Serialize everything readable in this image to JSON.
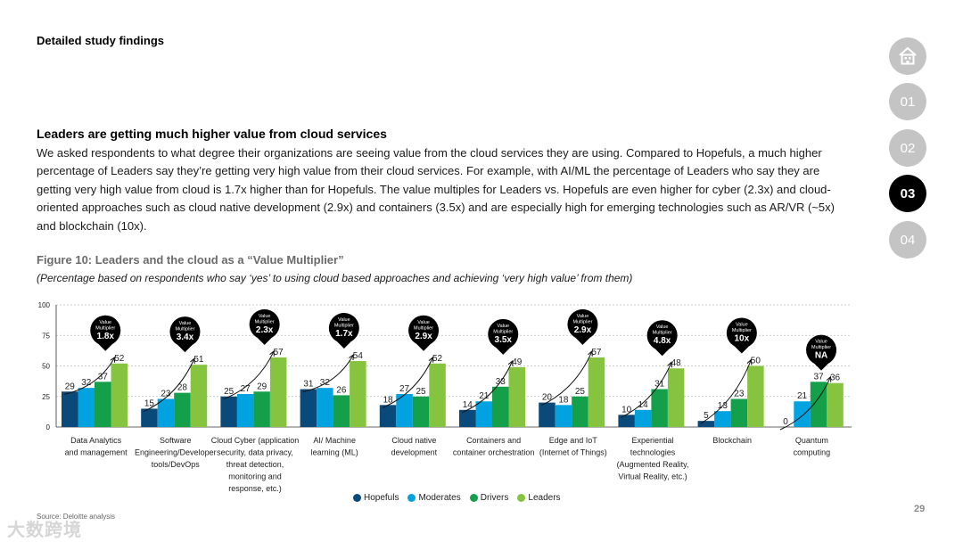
{
  "section_title": "Detailed study findings",
  "heading": "Leaders are getting much higher value from cloud services",
  "body": "We asked respondents to what degree their organizations are seeing value from the cloud services they are using. Compared to Hopefuls, a much higher percentage of Leaders say they’re getting very high value from their cloud services. For example, with AI/ML the percentage of Leaders who say they are getting very high value from cloud is 1.7x higher than for Hopefuls. The value multiples for Leaders vs. Hopefuls are even higher for cyber (2.3x) and cloud-oriented approaches such as cloud native development (2.9x) and containers (3.5x) and are especially high for emerging technologies such as AR/VR (~5x) and blockchain (10x).",
  "figure_title": "Figure 10: Leaders and the cloud as a “Value Multiplier”",
  "figure_subtitle": "(Percentage based on respondents who say ‘yes’ to using cloud based approaches and achieving ‘very high value’ from them)",
  "source": "Source: Deloitte analysis",
  "watermark": "大数跨境",
  "page_number": "29",
  "nav": {
    "home_label": "home",
    "items": [
      "01",
      "02",
      "03",
      "04"
    ],
    "active_index": 2
  },
  "colors": {
    "Hopefuls": "#0a4a7a",
    "Moderates": "#00a3e0",
    "Drivers": "#14a04a",
    "Leaders": "#86c440"
  },
  "chart_data": {
    "type": "bar",
    "title": "Figure 10: Leaders and the cloud as a “Value Multiplier”",
    "ylim": [
      0,
      100
    ],
    "yticks": [
      0,
      25,
      50,
      75,
      100
    ],
    "grid": true,
    "multiplier_label": "Value Multiplier",
    "categories": [
      [
        "Data Analytics",
        "and management"
      ],
      [
        "Software",
        "Engineering/Developer",
        "tools/DevOps"
      ],
      [
        "Cloud Cyber (application",
        "security, data privacy,",
        "threat detection,",
        "monitoring and",
        "response, etc.)"
      ],
      [
        "AI/ Machine",
        "learning (ML)"
      ],
      [
        "Cloud native",
        "development"
      ],
      [
        "Containers and",
        "container orchestration"
      ],
      [
        "Edge and IoT",
        "(Internet of Things)"
      ],
      [
        "Experiential",
        "technologies",
        "(Augmented Reality,",
        "Virtual Reality, etc.)"
      ],
      [
        "Blockchain"
      ],
      [
        "Quantum",
        "computing"
      ]
    ],
    "series": [
      {
        "name": "Hopefuls",
        "values": [
          29,
          15,
          25,
          31,
          18,
          14,
          20,
          10,
          5,
          0
        ]
      },
      {
        "name": "Moderates",
        "values": [
          32,
          23,
          27,
          32,
          27,
          21,
          18,
          14,
          13,
          21
        ]
      },
      {
        "name": "Drivers",
        "values": [
          37,
          28,
          29,
          26,
          25,
          33,
          25,
          31,
          23,
          37
        ]
      },
      {
        "name": "Leaders",
        "values": [
          52,
          51,
          57,
          54,
          52,
          49,
          57,
          48,
          50,
          36
        ]
      }
    ],
    "multipliers": [
      "1.8x",
      "3.4x",
      "2.3x",
      "1.7x",
      "2.9x",
      "3.5x",
      "2.9x",
      "4.8x",
      "10x",
      "NA"
    ],
    "legend": [
      "Hopefuls",
      "Moderates",
      "Drivers",
      "Leaders"
    ]
  }
}
